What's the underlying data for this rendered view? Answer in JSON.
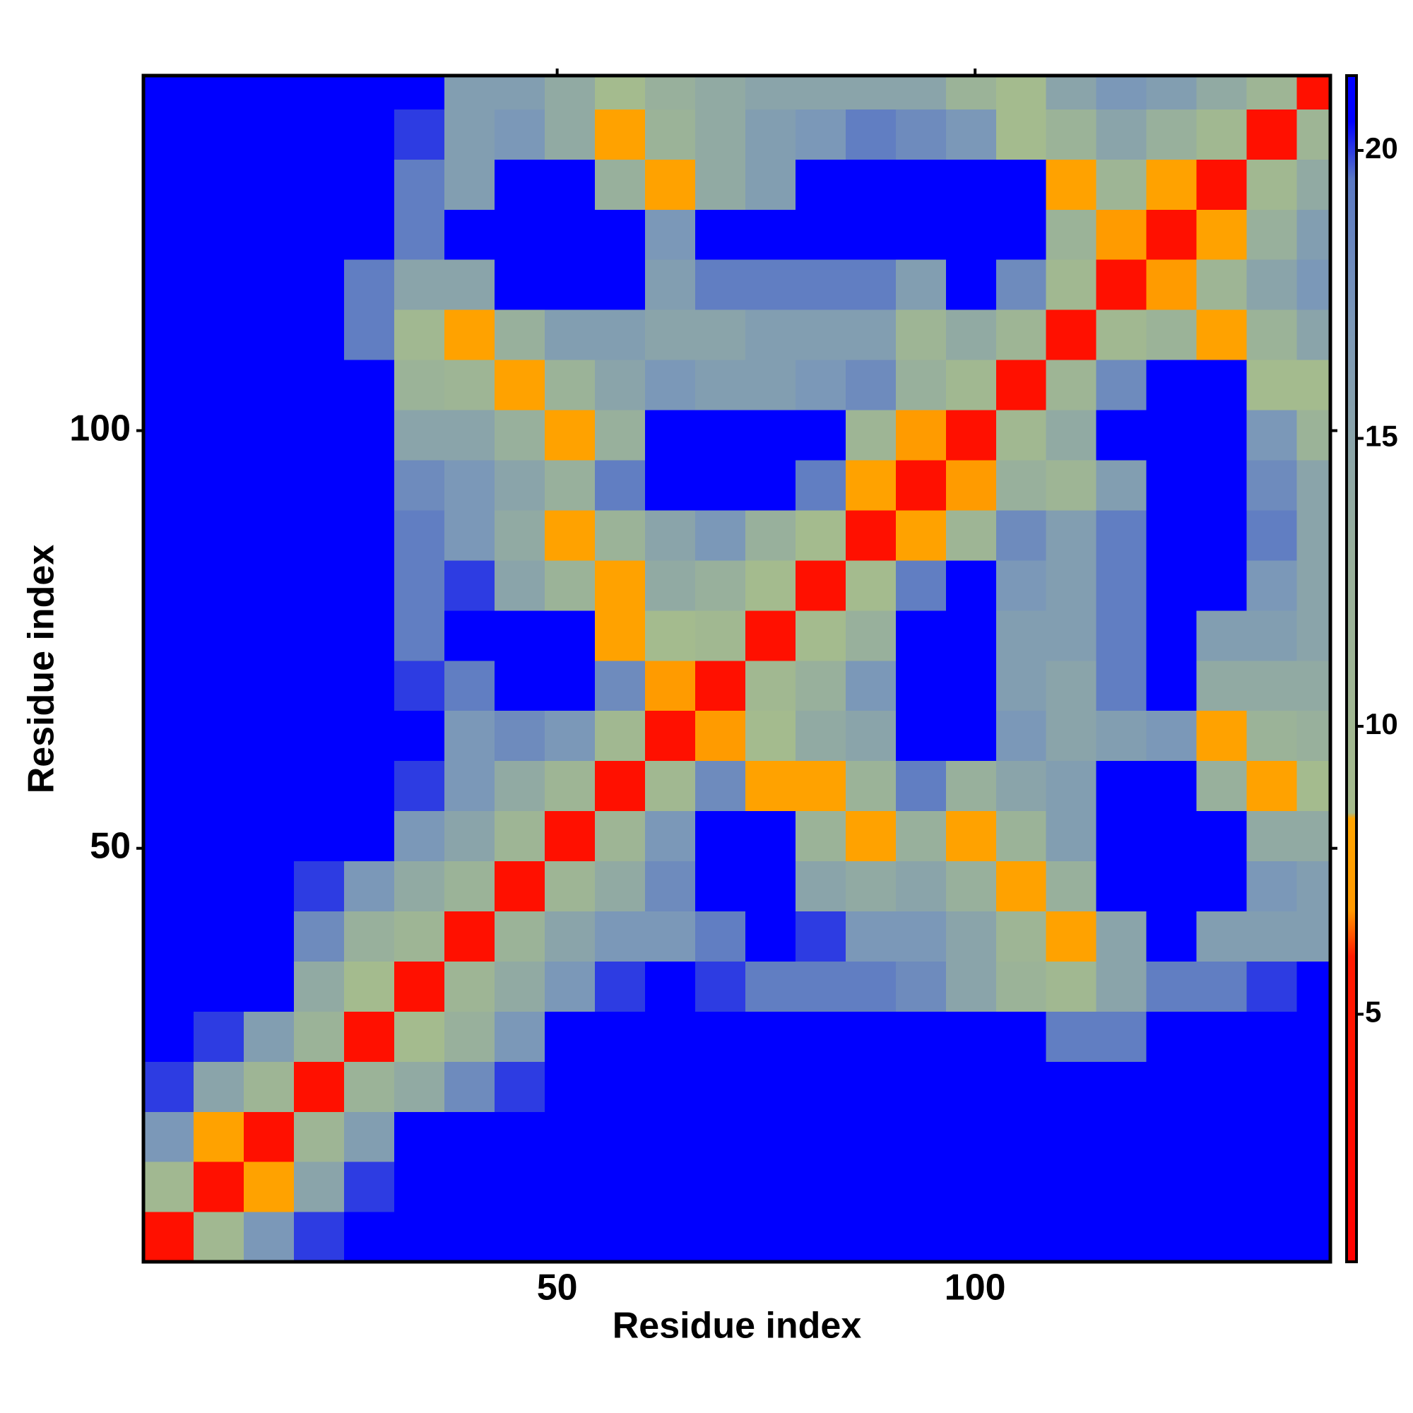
{
  "chart_data": {
    "type": "heatmap",
    "xlabel": "Residue index",
    "ylabel": "Residue index",
    "xbins": [
      0.5,
      6.5,
      12.5,
      18.5,
      24.5,
      30.5,
      36.5,
      42.5,
      48.5,
      54.5,
      60.5,
      66.5,
      72.5,
      78.5,
      84.5,
      90.5,
      96.5,
      102.5,
      108.5,
      114.5,
      120.5,
      126.5,
      132.5,
      138.5,
      142.5
    ],
    "ybins": [
      0.5,
      6.5,
      12.5,
      18.5,
      24.5,
      30.5,
      36.5,
      42.5,
      48.5,
      54.5,
      60.5,
      66.5,
      72.5,
      78.5,
      84.5,
      90.5,
      96.5,
      102.5,
      108.5,
      114.5,
      120.5,
      126.5,
      132.5,
      138.5,
      142.5
    ],
    "xlim": [
      0.5,
      142.5
    ],
    "ylim": [
      0.5,
      142.5
    ],
    "xticks": [
      50,
      100
    ],
    "yticks": [
      50,
      100
    ],
    "colorbar": {
      "lim": [
        0.7,
        21.3
      ],
      "ticks": [
        5,
        10,
        15,
        20
      ]
    },
    "colorscale": [
      [
        0.7,
        "#ff0000"
      ],
      [
        6,
        "#ff1a00"
      ],
      [
        6.8,
        "#ff9900"
      ],
      [
        8.4,
        "#ffa500"
      ],
      [
        8.5,
        "#a6bc8c"
      ],
      [
        13,
        "#98b09c"
      ],
      [
        17,
        "#7b98b8"
      ],
      [
        19.5,
        "#5a78c4"
      ],
      [
        20.5,
        "#0000ff"
      ],
      [
        21.3,
        "#0000ff"
      ]
    ],
    "z": [
      [
        4,
        10,
        17,
        20,
        21,
        21,
        21,
        21,
        21,
        21,
        21,
        21,
        21,
        21,
        21,
        21,
        21,
        21,
        21,
        21,
        21,
        21,
        21,
        21
      ],
      [
        10,
        4,
        8,
        15,
        20,
        21,
        21,
        21,
        21,
        21,
        21,
        21,
        21,
        21,
        21,
        21,
        21,
        21,
        21,
        21,
        21,
        21,
        21,
        21
      ],
      [
        17,
        8,
        4,
        11,
        16,
        21,
        21,
        21,
        21,
        21,
        21,
        21,
        21,
        21,
        21,
        21,
        21,
        21,
        21,
        21,
        21,
        21,
        21,
        21
      ],
      [
        20,
        15,
        11,
        4,
        12,
        14,
        18,
        20,
        21,
        21,
        21,
        21,
        21,
        21,
        21,
        21,
        21,
        21,
        21,
        21,
        21,
        21,
        21,
        21
      ],
      [
        21,
        20,
        16,
        12,
        4,
        9,
        13,
        17,
        21,
        21,
        21,
        21,
        21,
        21,
        21,
        21,
        21,
        21,
        19,
        19,
        21,
        21,
        21,
        21
      ],
      [
        21,
        21,
        21,
        14,
        9,
        4,
        11,
        14,
        17,
        20,
        21,
        20,
        19,
        19,
        19,
        18,
        15,
        12,
        10,
        15,
        19,
        19,
        20,
        21
      ],
      [
        21,
        21,
        21,
        18,
        13,
        11,
        4,
        12,
        15,
        17,
        17,
        19,
        21,
        20,
        17,
        17,
        15,
        11,
        8,
        15,
        21,
        16,
        16,
        16
      ],
      [
        21,
        21,
        21,
        20,
        17,
        14,
        12,
        4,
        11,
        14,
        18,
        21,
        21,
        15,
        14,
        15,
        13,
        8,
        13,
        21,
        21,
        21,
        17,
        16
      ],
      [
        21,
        21,
        21,
        21,
        21,
        17,
        15,
        11,
        4,
        11,
        17,
        21,
        21,
        12,
        8,
        13,
        8,
        12,
        16,
        21,
        21,
        21,
        14,
        14
      ],
      [
        21,
        21,
        21,
        21,
        21,
        20,
        17,
        14,
        11,
        4,
        10,
        18,
        8,
        8,
        12,
        19,
        13,
        15,
        16,
        21,
        21,
        13,
        8,
        9
      ],
      [
        21,
        21,
        21,
        21,
        21,
        21,
        17,
        18,
        17,
        10,
        4,
        7,
        9,
        14,
        15,
        21,
        21,
        17,
        15,
        16,
        17,
        8,
        12,
        13
      ],
      [
        21,
        21,
        21,
        21,
        21,
        20,
        19,
        21,
        21,
        18,
        7,
        4,
        10,
        13,
        17,
        21,
        21,
        16,
        15,
        19,
        21,
        14,
        14,
        14
      ],
      [
        21,
        21,
        21,
        21,
        21,
        19,
        21,
        21,
        21,
        8,
        9,
        10,
        4,
        9,
        13,
        21,
        21,
        16,
        16,
        19,
        21,
        16,
        16,
        15
      ],
      [
        21,
        21,
        21,
        21,
        21,
        19,
        20,
        15,
        12,
        8,
        14,
        13,
        9,
        4,
        9,
        19,
        21,
        17,
        16,
        19,
        21,
        21,
        17,
        15
      ],
      [
        21,
        21,
        21,
        21,
        21,
        19,
        17,
        14,
        8,
        12,
        15,
        17,
        13,
        9,
        4,
        8,
        11,
        18,
        16,
        19,
        21,
        21,
        19,
        15
      ],
      [
        21,
        21,
        21,
        21,
        21,
        18,
        17,
        15,
        13,
        19,
        21,
        21,
        21,
        19,
        8,
        4,
        7,
        13,
        11,
        16,
        21,
        21,
        18,
        15
      ],
      [
        21,
        21,
        21,
        21,
        21,
        15,
        15,
        13,
        8,
        13,
        21,
        21,
        21,
        21,
        11,
        7,
        4,
        10,
        14,
        21,
        21,
        21,
        17,
        12
      ],
      [
        21,
        21,
        21,
        21,
        21,
        12,
        11,
        8,
        12,
        15,
        17,
        16,
        16,
        17,
        18,
        13,
        10,
        4,
        11,
        18,
        21,
        21,
        9,
        9
      ],
      [
        21,
        21,
        21,
        21,
        19,
        10,
        8,
        13,
        16,
        16,
        15,
        15,
        16,
        16,
        16,
        11,
        14,
        11,
        4,
        10,
        12,
        8,
        12,
        15
      ],
      [
        21,
        21,
        21,
        21,
        19,
        15,
        15,
        21,
        21,
        21,
        16,
        19,
        19,
        19,
        19,
        16,
        21,
        18,
        10,
        4,
        7,
        11,
        15,
        17
      ],
      [
        21,
        21,
        21,
        21,
        21,
        19,
        21,
        21,
        21,
        21,
        17,
        21,
        21,
        21,
        21,
        21,
        21,
        21,
        12,
        7,
        4,
        8,
        13,
        16
      ],
      [
        21,
        21,
        21,
        21,
        21,
        19,
        16,
        21,
        21,
        13,
        8,
        14,
        16,
        21,
        21,
        21,
        21,
        21,
        8,
        11,
        8,
        4,
        10,
        14
      ],
      [
        21,
        21,
        21,
        21,
        21,
        20,
        16,
        17,
        14,
        8,
        12,
        14,
        16,
        17,
        19,
        18,
        17,
        9,
        12,
        15,
        13,
        10,
        4,
        11
      ],
      [
        21,
        21,
        21,
        21,
        21,
        21,
        16,
        16,
        14,
        9,
        13,
        14,
        15,
        15,
        15,
        15,
        12,
        9,
        15,
        17,
        16,
        14,
        11,
        4
      ]
    ]
  }
}
